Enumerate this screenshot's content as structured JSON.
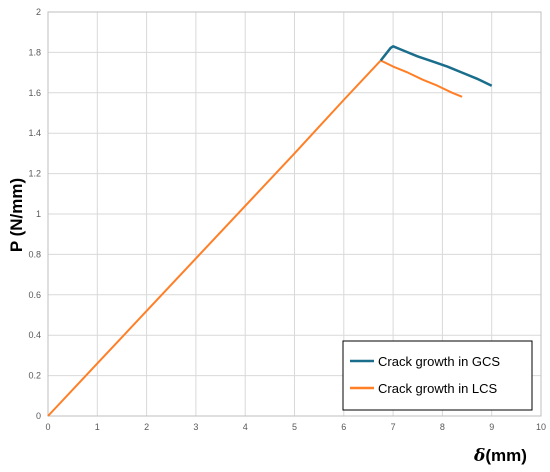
{
  "chart_data": {
    "type": "line",
    "xlabel_symbol": "δ",
    "xlabel_unit": "(mm)",
    "ylabel": "P (N/mm)",
    "xlim": [
      0,
      10
    ],
    "ylim": [
      0,
      2
    ],
    "xticks": [
      0,
      1,
      2,
      3,
      4,
      5,
      6,
      7,
      8,
      9,
      10
    ],
    "yticks": [
      0,
      0.2,
      0.4,
      0.6,
      0.8,
      1,
      1.2,
      1.4,
      1.6,
      1.8,
      2
    ],
    "grid": true,
    "legend_position": "bottom-right",
    "series": [
      {
        "name": "Crack growth in GCS",
        "color": "#1a6e8c",
        "x": [
          6.75,
          6.95,
          7.0,
          7.2,
          7.5,
          7.8,
          8.1,
          8.4,
          8.7,
          9.0
        ],
        "y": [
          1.76,
          1.822,
          1.83,
          1.81,
          1.78,
          1.755,
          1.73,
          1.7,
          1.67,
          1.635
        ]
      },
      {
        "name": "Crack growth in LCS",
        "color": "#ff7f27",
        "x": [
          0,
          1,
          2,
          3,
          4,
          5,
          6,
          6.75,
          7.0,
          7.3,
          7.6,
          7.9,
          8.2,
          8.4
        ],
        "y": [
          0,
          0.26,
          0.52,
          0.78,
          1.04,
          1.3,
          1.565,
          1.76,
          1.73,
          1.7,
          1.665,
          1.635,
          1.6,
          1.58
        ]
      }
    ]
  }
}
